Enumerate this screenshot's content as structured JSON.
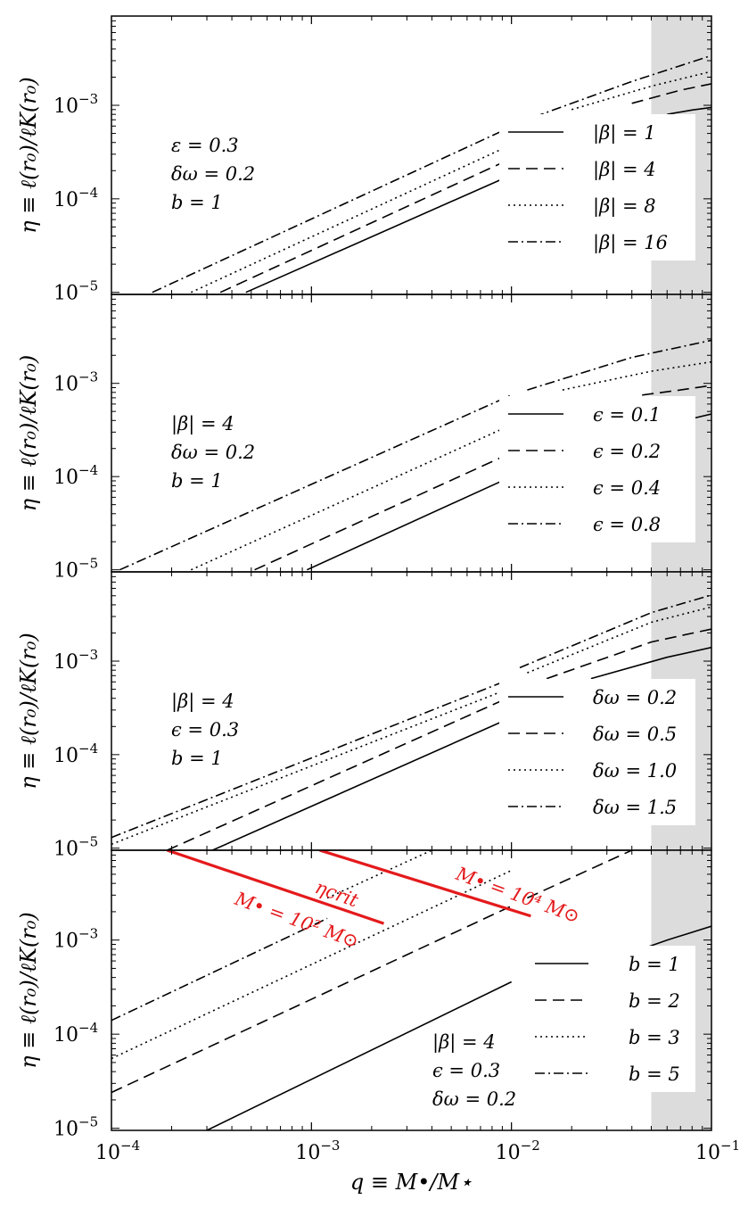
{
  "chart_data": [
    {
      "type": "line",
      "panel": 1,
      "xscale": "log",
      "yscale": "log",
      "xlim": [
        0.0001,
        0.1
      ],
      "ylim": [
        9.5e-06,
        0.009
      ],
      "shaded_region": [
        0.05,
        0.1
      ],
      "annotation": [
        "ε = 0.3",
        "δω = 0.2",
        "b = 1"
      ],
      "legend_position": "right",
      "series": [
        {
          "name": "|β| = 1",
          "style": "solid",
          "x": [
            0.00047,
            0.01
          ],
          "y": [
            1e-05,
            0.00018
          ]
        },
        {
          "name": "|β| = 4",
          "style": "dashed",
          "x": [
            0.00035,
            0.01
          ],
          "y": [
            1e-05,
            0.00027
          ]
        },
        {
          "name": "|β| = 8",
          "style": "dotted",
          "x": [
            0.00025,
            0.01
          ],
          "y": [
            1e-05,
            0.00038
          ]
        },
        {
          "name": "|β| = 16",
          "style": "dashdot",
          "x": [
            0.00016,
            0.01
          ],
          "y": [
            1e-05,
            0.00059
          ]
        },
        {
          "name": "",
          "style": "solid",
          "x": [
            0.06,
            0.08,
            0.1
          ],
          "y": [
            0.0008,
            0.00089,
            0.00095
          ]
        },
        {
          "name": "",
          "style": "dashed",
          "x": [
            0.04,
            0.07,
            0.1
          ],
          "y": [
            0.00105,
            0.00145,
            0.0017
          ]
        },
        {
          "name": "",
          "style": "dotted",
          "x": [
            0.02,
            0.05,
            0.1
          ],
          "y": [
            0.0009,
            0.0016,
            0.0023
          ]
        },
        {
          "name": "",
          "style": "dashdot",
          "x": [
            0.013,
            0.04,
            0.1
          ],
          "y": [
            0.00075,
            0.0018,
            0.0034
          ]
        }
      ]
    },
    {
      "type": "line",
      "panel": 2,
      "xscale": "log",
      "yscale": "log",
      "xlim": [
        0.0001,
        0.1
      ],
      "ylim": [
        9.5e-06,
        0.009
      ],
      "shaded_region": [
        0.05,
        0.1
      ],
      "annotation": [
        "|β| = 4",
        "δω = 0.2",
        "b = 1"
      ],
      "legend_position": "right",
      "series": [
        {
          "name": "ϵ = 0.1",
          "style": "solid",
          "x": [
            0.00095,
            0.01
          ],
          "y": [
            1e-05,
            0.0001
          ]
        },
        {
          "name": "ϵ = 0.2",
          "style": "dashed",
          "x": [
            0.00052,
            0.01
          ],
          "y": [
            1e-05,
            0.00018
          ]
        },
        {
          "name": "ϵ = 0.4",
          "style": "dotted",
          "x": [
            0.00025,
            0.01
          ],
          "y": [
            1e-05,
            0.00036
          ]
        },
        {
          "name": "ϵ = 0.8",
          "style": "dashdot",
          "x": [
            0.00011,
            0.01
          ],
          "y": [
            1e-05,
            0.00075
          ]
        },
        {
          "name": "",
          "style": "solid",
          "x": [
            0.08,
            0.1
          ],
          "y": [
            0.00042,
            0.00047
          ]
        },
        {
          "name": "",
          "style": "dashed",
          "x": [
            0.045,
            0.07,
            0.1
          ],
          "y": [
            0.00075,
            0.00085,
            0.00095
          ]
        },
        {
          "name": "",
          "style": "dotted",
          "x": [
            0.018,
            0.05,
            0.1
          ],
          "y": [
            0.00085,
            0.00135,
            0.0017
          ]
        },
        {
          "name": "",
          "style": "dashdot",
          "x": [
            0.012,
            0.04,
            0.1
          ],
          "y": [
            0.00085,
            0.0019,
            0.0029
          ]
        }
      ]
    },
    {
      "type": "line",
      "panel": 3,
      "xscale": "log",
      "yscale": "log",
      "xlim": [
        0.0001,
        0.1
      ],
      "ylim": [
        9.5e-06,
        0.009
      ],
      "shaded_region": [
        0.05,
        0.1
      ],
      "annotation": [
        "|β| = 4",
        "ϵ = 0.3",
        "b = 1"
      ],
      "legend_position": "right",
      "series": [
        {
          "name": "δω = 0.2",
          "style": "solid",
          "x": [
            0.00032,
            0.01
          ],
          "y": [
            9.5e-06,
            0.00025
          ]
        },
        {
          "name": "δω = 0.5",
          "style": "dashed",
          "x": [
            0.00019,
            0.01
          ],
          "y": [
            9.5e-06,
            0.00042
          ]
        },
        {
          "name": "δω = 1.0",
          "style": "dotted",
          "x": [
            0.0001,
            0.01
          ],
          "y": [
            1.1e-05,
            0.00052
          ]
        },
        {
          "name": "δω = 1.5",
          "style": "dashdot",
          "x": [
            0.0001,
            0.01
          ],
          "y": [
            1.3e-05,
            0.00065
          ]
        },
        {
          "name": "",
          "style": "solid",
          "x": [
            0.025,
            0.06,
            0.1
          ],
          "y": [
            0.00065,
            0.0011,
            0.0014
          ]
        },
        {
          "name": "",
          "style": "dashed",
          "x": [
            0.015,
            0.05,
            0.1
          ],
          "y": [
            0.00065,
            0.0016,
            0.0022
          ]
        },
        {
          "name": "",
          "style": "dotted",
          "x": [
            0.012,
            0.05,
            0.1
          ],
          "y": [
            0.00075,
            0.0026,
            0.0038
          ]
        },
        {
          "name": "",
          "style": "dashdot",
          "x": [
            0.011,
            0.05,
            0.1
          ],
          "y": [
            0.00085,
            0.0033,
            0.0051
          ]
        }
      ]
    },
    {
      "type": "line",
      "panel": 4,
      "xscale": "log",
      "yscale": "log",
      "xlim": [
        0.0001,
        0.1
      ],
      "ylim": [
        9.5e-06,
        0.009
      ],
      "shaded_region": [
        0.05,
        0.1
      ],
      "annotation": [
        "|β| = 4",
        "ϵ = 0.3",
        "δω = 0.2"
      ],
      "legend_position": "lower right",
      "series": [
        {
          "name": "b = 1",
          "style": "solid",
          "x": [
            0.0003,
            0.01
          ],
          "y": [
            9.5e-06,
            0.00036
          ]
        },
        {
          "name": "b = 2",
          "style": "dashed",
          "x": [
            0.0001,
            0.01
          ],
          "y": [
            2.4e-05,
            0.0023
          ]
        },
        {
          "name": "b = 3",
          "style": "dotted",
          "x": [
            0.0001,
            0.01
          ],
          "y": [
            5.5e-05,
            0.0055
          ]
        },
        {
          "name": "b = 5",
          "style": "dashdot",
          "x": [
            0.0001,
            0.0012
          ],
          "y": [
            0.00014,
            0.0017
          ]
        },
        {
          "name": "",
          "style": "solid",
          "x": [
            0.025,
            0.06,
            0.1
          ],
          "y": [
            0.00052,
            0.001,
            0.0014
          ]
        },
        {
          "name": "",
          "style": "dashed",
          "x": [
            0.012,
            0.04
          ],
          "y": [
            0.0028,
            0.009
          ]
        },
        {
          "name": "",
          "style": "dotted",
          "x": [
            0.0012,
            0.004
          ],
          "y": [
            0.0028,
            0.009
          ]
        }
      ],
      "critical_lines": [
        {
          "label": "M• = 10² M⊙",
          "color": "#e41a1c",
          "x": [
            0.00019,
            0.0023
          ],
          "y": [
            0.009,
            0.0015
          ]
        },
        {
          "label": "M• = 10⁴ M⊙",
          "color": "#e41a1c",
          "x": [
            0.0011,
            0.0125
          ],
          "y": [
            0.009,
            0.0018
          ]
        }
      ],
      "critical_label": "ηcrit"
    }
  ],
  "axes": {
    "ylabel": "η ≡ ℓ(r₀)/ℓK(r₀)",
    "xlabel": "q ≡ M•/M⋆",
    "xticks": [
      {
        "value": 0.0001,
        "mantissa": "10",
        "exp": "−4"
      },
      {
        "value": 0.001,
        "mantissa": "10",
        "exp": "−3"
      },
      {
        "value": 0.01,
        "mantissa": "10",
        "exp": "−2"
      },
      {
        "value": 0.1,
        "mantissa": "10",
        "exp": "−1"
      }
    ],
    "yticks": [
      {
        "value": 1e-05,
        "mantissa": "10",
        "exp": "−5"
      },
      {
        "value": 0.0001,
        "mantissa": "10",
        "exp": "−4"
      },
      {
        "value": 0.001,
        "mantissa": "10",
        "exp": "−3"
      }
    ]
  },
  "colors": {
    "line": "#000000",
    "critical": "#e41a1c",
    "shade": "#dcdcdc"
  }
}
